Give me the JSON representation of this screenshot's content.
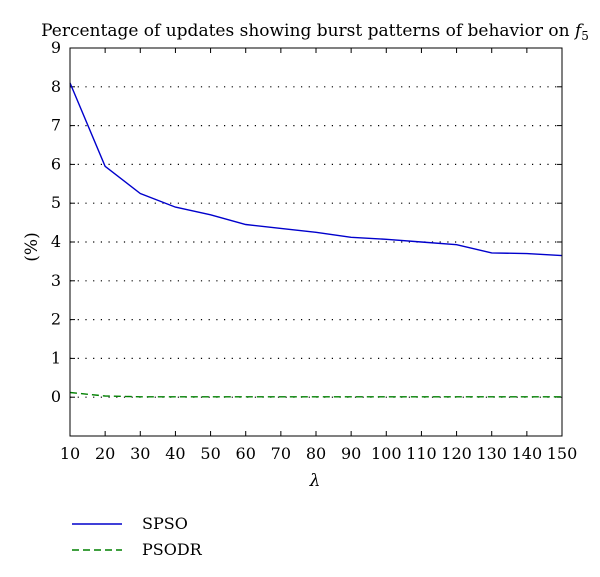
{
  "chart_data": {
    "type": "line",
    "title": "Percentage of updates showing burst patterns of behavior on ",
    "title_math": {
      "base": "f",
      "sub": "5"
    },
    "xlabel": "λ",
    "ylabel": "(%)",
    "xlim": [
      10,
      150
    ],
    "ylim": [
      -1,
      9
    ],
    "x_ticks": [
      10,
      20,
      30,
      40,
      50,
      60,
      70,
      80,
      90,
      100,
      110,
      120,
      130,
      140,
      150
    ],
    "y_ticks": [
      0,
      1,
      2,
      3,
      4,
      5,
      6,
      7,
      8,
      9
    ],
    "grid": "dotted-horizontal",
    "legend_position": "below-left",
    "x": [
      10,
      20,
      30,
      40,
      50,
      60,
      70,
      80,
      90,
      100,
      110,
      120,
      130,
      140,
      150
    ],
    "series": [
      {
        "name": "SPSO",
        "color": "#0000cc",
        "dash": "solid",
        "values": [
          8.1,
          5.95,
          5.25,
          4.9,
          4.7,
          4.45,
          4.35,
          4.25,
          4.12,
          4.07,
          4.0,
          3.93,
          3.72,
          3.7,
          3.65
        ]
      },
      {
        "name": "PSODR",
        "color": "#008000",
        "dash": "dashed",
        "values": [
          0.12,
          0.03,
          0.01,
          0.01,
          0.01,
          0.01,
          0.01,
          0.01,
          0.01,
          0.01,
          0.01,
          0.01,
          0.01,
          0.01,
          0.01
        ]
      }
    ]
  }
}
